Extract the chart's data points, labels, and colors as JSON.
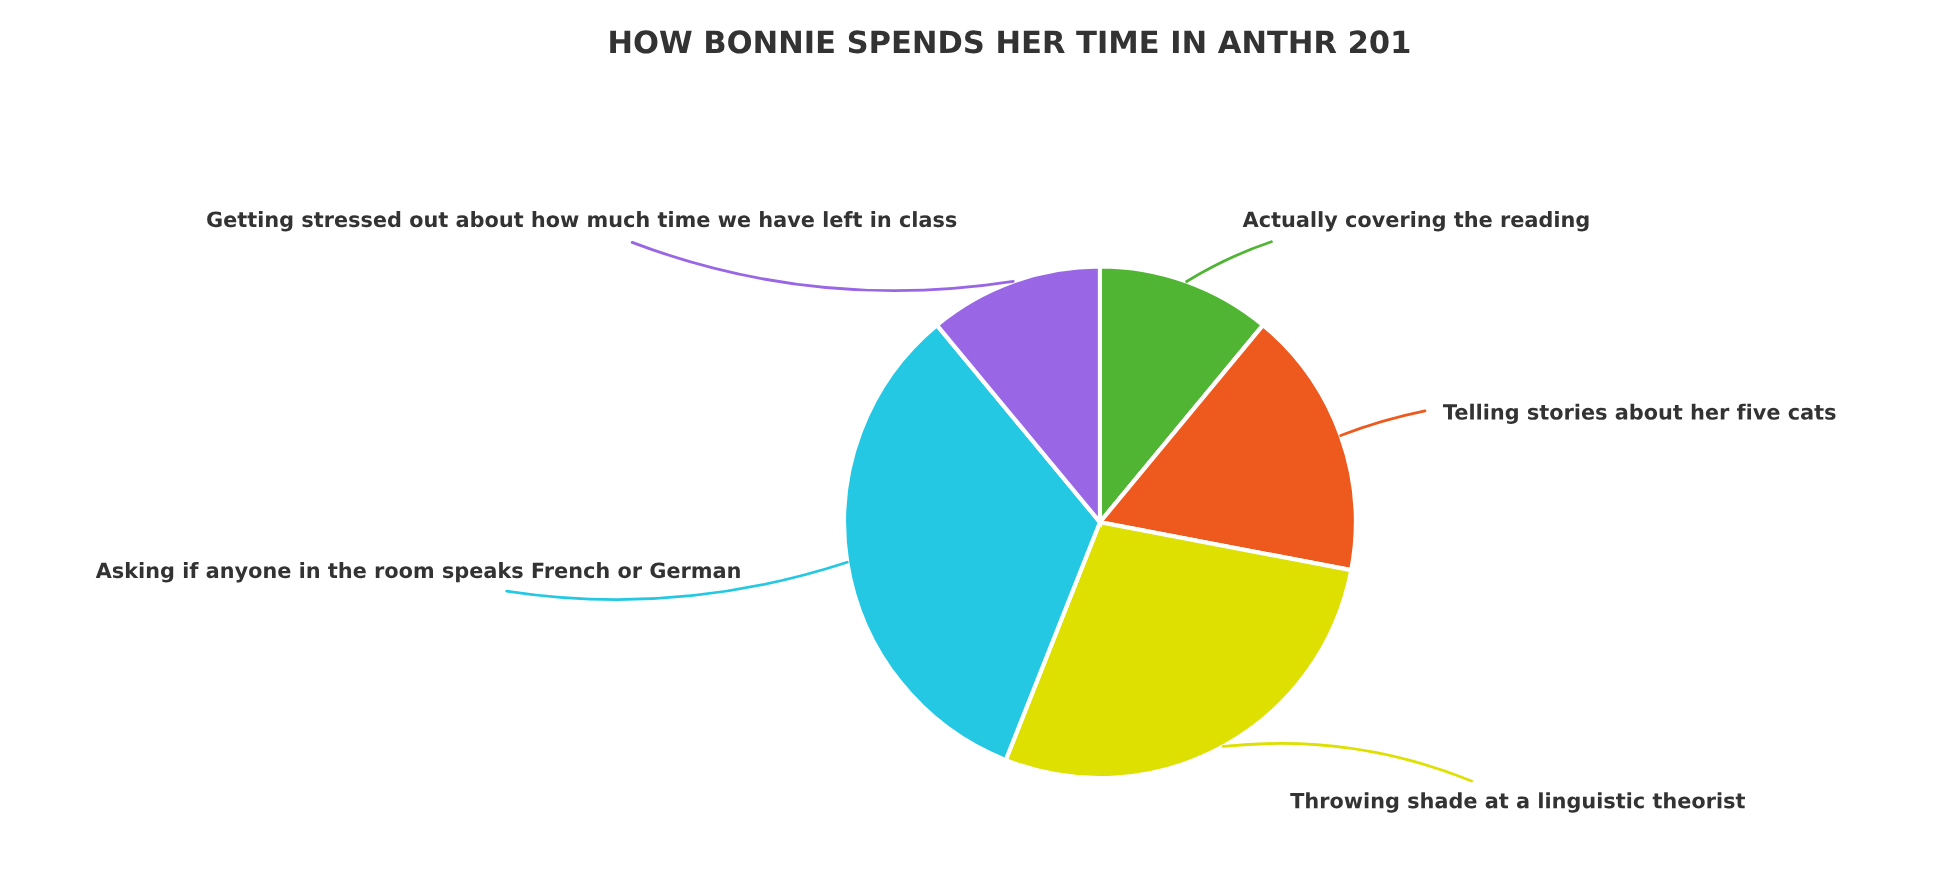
{
  "chart_data": {
    "type": "pie",
    "title": "HOW BONNIE SPENDS HER TIME IN ANTHR 201",
    "categories": [
      "Actually covering the reading",
      "Telling stories about her five cats",
      "Throwing shade at a linguistic theorist",
      "Asking if anyone in the room speaks French or German",
      "Getting stressed out about how much time we have left in class"
    ],
    "values": [
      11,
      17,
      28,
      33,
      11
    ],
    "colors": [
      "#4fb533",
      "#ee5a1e",
      "#dde000",
      "#24c8e3",
      "#9966e6"
    ]
  }
}
